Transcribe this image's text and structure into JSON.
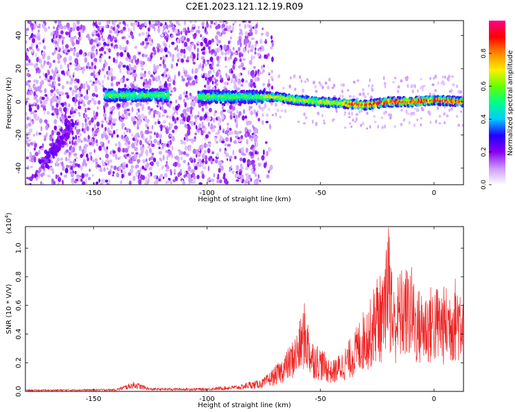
{
  "figure": {
    "title": "C2E1.2023.121.12.19.R09"
  },
  "chart_data": [
    {
      "type": "heatmap",
      "title": "C2E1.2023.121.12.19.R09",
      "xlabel": "Height of straight line (km)",
      "ylabel": "Frequency (Hz)",
      "xlim": [
        -180,
        13
      ],
      "ylim": [
        -50,
        49
      ],
      "xticks": [
        -150,
        -100,
        -50,
        0
      ],
      "yticks": [
        -40,
        -20,
        0,
        20,
        40
      ],
      "colorbar": {
        "label": "Normalized spectral amplitude",
        "range": [
          0.0,
          1.0
        ],
        "ticks": [
          0.0,
          0.2,
          0.4,
          0.6,
          0.8
        ],
        "colormap": [
          "#ffffff",
          "#cc99ff",
          "#8800ee",
          "#2200ff",
          "#00ccff",
          "#00ff88",
          "#66ff00",
          "#ffee00",
          "#ff8800",
          "#ff0000",
          "#ff0088"
        ]
      },
      "ridge": {
        "description_free": true,
        "points": [
          [
            -140,
            4
          ],
          [
            -120,
            4
          ],
          [
            -100,
            3
          ],
          [
            -80,
            3
          ],
          [
            -70,
            3
          ],
          [
            -60,
            1
          ],
          [
            -50,
            0
          ],
          [
            -40,
            -1
          ],
          [
            -30,
            -2
          ],
          [
            -20,
            0
          ],
          [
            -10,
            0
          ],
          [
            0,
            1
          ],
          [
            13,
            0
          ]
        ]
      },
      "features": {
        "streak_low": [
          [
            -172,
            -38
          ],
          [
            -160,
            -14
          ]
        ],
        "noise_region_end_km": -77
      }
    },
    {
      "type": "line",
      "xlabel": "Height of straight line (km)",
      "ylabel": "SNR (10 * V/V)",
      "y_multiplier": "(x10",
      "y_multiplier_exp": "4",
      "y_multiplier_close": ")",
      "xlim": [
        -180,
        13
      ],
      "ylim": [
        0,
        1.15
      ],
      "xticks": [
        -150,
        -100,
        -50,
        0
      ],
      "yticks": [
        0.0,
        0.2,
        0.4,
        0.6,
        0.8,
        1.0
      ],
      "color": "#ee2222",
      "envelope": [
        [
          -180,
          0.01
        ],
        [
          -140,
          0.015
        ],
        [
          -132,
          0.06
        ],
        [
          -125,
          0.02
        ],
        [
          -100,
          0.02
        ],
        [
          -85,
          0.04
        ],
        [
          -75,
          0.09
        ],
        [
          -68,
          0.2
        ],
        [
          -63,
          0.32
        ],
        [
          -60,
          0.42
        ],
        [
          -57,
          0.6
        ],
        [
          -54,
          0.36
        ],
        [
          -50,
          0.3
        ],
        [
          -45,
          0.2
        ],
        [
          -40,
          0.28
        ],
        [
          -35,
          0.4
        ],
        [
          -32,
          0.52
        ],
        [
          -28,
          0.62
        ],
        [
          -25,
          0.8
        ],
        [
          -22,
          0.75
        ],
        [
          -20,
          1.15
        ],
        [
          -18,
          0.7
        ],
        [
          -15,
          0.82
        ],
        [
          -10,
          0.85
        ],
        [
          -8,
          0.7
        ],
        [
          -5,
          0.68
        ],
        [
          0,
          0.72
        ],
        [
          5,
          0.7
        ],
        [
          10,
          0.78
        ],
        [
          13,
          0.78
        ]
      ]
    }
  ]
}
